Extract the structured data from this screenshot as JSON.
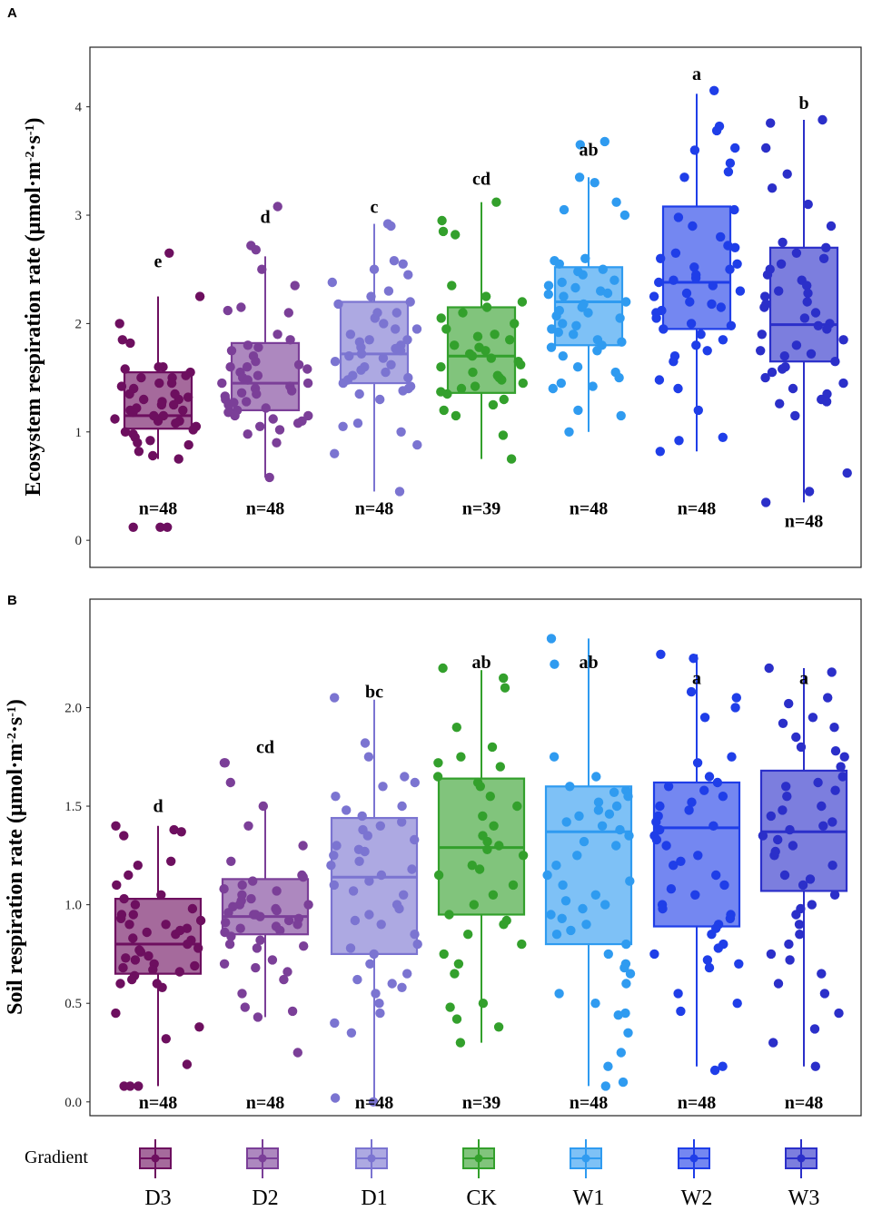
{
  "chart_data": [
    {
      "type": "box",
      "panel_label": "A",
      "ylabel_main": "Ecosystem respiration rate (μmol·m",
      "ylabel_sup1": "-2",
      "ylabel_mid": "·s",
      "ylabel_sup2": "-1",
      "ylabel_end": ")",
      "ylim": [
        -0.25,
        4.55
      ],
      "yticks": [
        "0",
        "1",
        "2",
        "3",
        "4"
      ],
      "groups": [
        {
          "name": "D3",
          "color": "#6d0f5f",
          "q1": 1.03,
          "median": 1.15,
          "q3": 1.55,
          "whisker_low": 0.75,
          "whisker_high": 2.25,
          "sig": "e",
          "sig_y": 2.52,
          "n": "n=48",
          "n_y": 0.3,
          "points": [
            2.65,
            2.25,
            2.0,
            1.85,
            1.82,
            1.6,
            1.58,
            1.55,
            1.52,
            1.5,
            1.45,
            1.42,
            1.4,
            1.35,
            1.32,
            1.3,
            1.28,
            1.25,
            1.22,
            1.2,
            1.18,
            1.15,
            1.12,
            1.1,
            1.08,
            1.05,
            1.02,
            1.0,
            0.98,
            0.95,
            0.92,
            0.88,
            0.82,
            0.78,
            0.75,
            0.12,
            0.12,
            0.12,
            1.5,
            1.35,
            1.2,
            1.1,
            1.3,
            1.6,
            1.45,
            0.9,
            1.15,
            1.25
          ]
        },
        {
          "name": "D2",
          "color": "#7b3f98",
          "q1": 1.2,
          "median": 1.45,
          "q3": 1.82,
          "whisker_low": 0.58,
          "whisker_high": 2.62,
          "sig": "d",
          "sig_y": 2.93,
          "n": "n=48",
          "n_y": 0.3,
          "points": [
            3.08,
            2.72,
            2.68,
            2.5,
            2.35,
            2.15,
            2.12,
            2.1,
            1.9,
            1.85,
            1.8,
            1.78,
            1.7,
            1.65,
            1.6,
            1.58,
            1.55,
            1.5,
            1.48,
            1.45,
            1.42,
            1.4,
            1.38,
            1.35,
            1.3,
            1.28,
            1.25,
            1.22,
            1.2,
            1.18,
            1.15,
            1.12,
            1.1,
            1.08,
            1.05,
            1.02,
            0.98,
            0.9,
            0.58,
            1.75,
            1.62,
            1.52,
            1.33,
            1.6,
            1.45,
            1.36,
            1.27,
            1.15
          ]
        },
        {
          "name": "D1",
          "color": "#7b74d1",
          "q1": 1.45,
          "median": 1.72,
          "q3": 2.2,
          "whisker_low": 0.45,
          "whisker_high": 2.92,
          "sig": "c",
          "sig_y": 3.02,
          "n": "n=48",
          "n_y": 0.3,
          "points": [
            2.92,
            2.9,
            2.58,
            2.55,
            2.5,
            2.45,
            2.38,
            2.3,
            2.25,
            2.2,
            2.18,
            2.1,
            2.05,
            2.0,
            1.95,
            1.9,
            1.85,
            1.8,
            1.78,
            1.75,
            1.72,
            1.7,
            1.68,
            1.65,
            1.6,
            1.55,
            1.52,
            1.5,
            1.45,
            1.42,
            1.4,
            1.35,
            1.3,
            1.08,
            1.05,
            1.0,
            0.88,
            0.8,
            0.45,
            2.1,
            1.95,
            1.83,
            1.77,
            1.62,
            1.57,
            1.48,
            1.38,
            1.85
          ]
        },
        {
          "name": "CK",
          "color": "#33a02c",
          "q1": 1.36,
          "median": 1.7,
          "q3": 2.15,
          "whisker_low": 0.75,
          "whisker_high": 3.12,
          "sig": "cd",
          "sig_y": 3.28,
          "n": "n=39",
          "n_y": 0.3,
          "points": [
            3.12,
            2.95,
            2.85,
            2.82,
            2.35,
            2.25,
            2.2,
            2.15,
            2.1,
            2.05,
            2.0,
            1.95,
            1.9,
            1.85,
            1.8,
            1.78,
            1.75,
            1.72,
            1.7,
            1.68,
            1.65,
            1.6,
            1.55,
            1.5,
            1.48,
            1.45,
            1.42,
            1.4,
            1.35,
            1.3,
            1.25,
            1.2,
            1.15,
            0.97,
            0.75,
            1.62,
            1.52,
            1.88,
            1.37
          ]
        },
        {
          "name": "W1",
          "color": "#2f9bf0",
          "q1": 1.8,
          "median": 2.2,
          "q3": 2.52,
          "whisker_low": 1.0,
          "whisker_high": 3.35,
          "sig": "ab",
          "sig_y": 3.55,
          "n": "n=48",
          "n_y": 0.3,
          "points": [
            3.68,
            3.65,
            3.35,
            3.3,
            3.12,
            3.05,
            3.0,
            2.6,
            2.58,
            2.55,
            2.5,
            2.45,
            2.4,
            2.35,
            2.3,
            2.28,
            2.25,
            2.2,
            2.18,
            2.15,
            2.1,
            2.05,
            2.0,
            1.98,
            1.95,
            1.9,
            1.85,
            1.8,
            1.78,
            1.75,
            1.6,
            1.55,
            1.5,
            1.45,
            1.42,
            1.4,
            1.2,
            1.15,
            1.0,
            2.48,
            2.38,
            2.12,
            1.92,
            1.83,
            2.27,
            2.07,
            1.7,
            2.33
          ]
        },
        {
          "name": "W2",
          "color": "#1f3ee8",
          "q1": 1.95,
          "median": 2.38,
          "q3": 3.08,
          "whisker_low": 0.82,
          "whisker_high": 4.12,
          "sig": "a",
          "sig_y": 4.25,
          "n": "n=48",
          "n_y": 0.3,
          "points": [
            4.15,
            3.82,
            3.78,
            3.62,
            3.6,
            3.48,
            3.4,
            3.35,
            3.05,
            2.98,
            2.9,
            2.8,
            2.7,
            2.65,
            2.6,
            2.55,
            2.5,
            2.45,
            2.42,
            2.4,
            2.38,
            2.35,
            2.3,
            2.25,
            2.2,
            2.18,
            2.15,
            2.1,
            2.05,
            2.0,
            1.95,
            1.9,
            1.8,
            1.75,
            1.7,
            1.65,
            1.48,
            1.4,
            1.2,
            0.95,
            0.92,
            0.82,
            2.72,
            2.52,
            2.28,
            2.12,
            1.98,
            1.85
          ]
        },
        {
          "name": "W3",
          "color": "#2b2fc9",
          "q1": 1.65,
          "median": 1.99,
          "q3": 2.7,
          "whisker_low": 0.35,
          "whisker_high": 3.88,
          "sig": "b",
          "sig_y": 3.98,
          "n": "n=48",
          "n_y": 0.18,
          "points": [
            3.88,
            3.85,
            3.62,
            3.38,
            3.25,
            3.1,
            2.9,
            2.75,
            2.7,
            2.65,
            2.55,
            2.5,
            2.45,
            2.4,
            2.35,
            2.3,
            2.28,
            2.25,
            2.2,
            2.15,
            2.1,
            2.05,
            2.0,
            1.98,
            1.95,
            1.9,
            1.85,
            1.8,
            1.75,
            1.7,
            1.65,
            1.6,
            1.55,
            1.5,
            1.45,
            1.4,
            1.35,
            1.3,
            1.28,
            1.26,
            1.15,
            0.62,
            0.45,
            0.35,
            2.6,
            2.18,
            1.72,
            1.58
          ]
        }
      ]
    },
    {
      "type": "box",
      "panel_label": "B",
      "ylabel_main": "Soil respiration rate (μmol·m",
      "ylabel_sup1": "-2",
      "ylabel_mid": "·s",
      "ylabel_sup2": "-1",
      "ylabel_end": ")",
      "ylim": [
        -0.07,
        2.55
      ],
      "yticks": [
        "0.0",
        "0.5",
        "1.0",
        "1.5",
        "2.0"
      ],
      "groups": [
        {
          "name": "D3",
          "color": "#6d0f5f",
          "q1": 0.65,
          "median": 0.8,
          "q3": 1.03,
          "whisker_low": 0.08,
          "whisker_high": 1.4,
          "sig": "d",
          "sig_y": 1.47,
          "n": "n=48",
          "n_y": 0.0,
          "points": [
            1.4,
            1.38,
            1.37,
            1.35,
            1.22,
            1.2,
            1.15,
            1.1,
            1.05,
            1.03,
            1.0,
            0.98,
            0.95,
            0.92,
            0.9,
            0.88,
            0.85,
            0.82,
            0.8,
            0.78,
            0.76,
            0.74,
            0.72,
            0.7,
            0.68,
            0.66,
            0.64,
            0.62,
            0.6,
            0.58,
            0.45,
            0.38,
            0.32,
            0.19,
            0.08,
            0.08,
            0.08,
            0.95,
            0.87,
            0.83,
            0.77,
            0.73,
            0.69,
            0.93,
            0.9,
            0.86,
            0.67,
            0.6
          ]
        },
        {
          "name": "D2",
          "color": "#7b3f98",
          "q1": 0.85,
          "median": 0.94,
          "q3": 1.13,
          "whisker_low": 0.43,
          "whisker_high": 1.52,
          "sig": "cd",
          "sig_y": 1.77,
          "n": "n=48",
          "n_y": 0.0,
          "points": [
            1.72,
            1.72,
            1.62,
            1.5,
            1.4,
            1.3,
            1.22,
            1.15,
            1.12,
            1.1,
            1.08,
            1.05,
            1.02,
            1.0,
            0.98,
            0.96,
            0.95,
            0.94,
            0.93,
            0.92,
            0.9,
            0.88,
            0.86,
            0.84,
            0.82,
            0.8,
            0.78,
            0.72,
            0.7,
            0.68,
            0.66,
            0.62,
            0.55,
            0.48,
            0.46,
            0.43,
            0.25,
            1.07,
            1.0,
            0.97,
            0.95,
            0.91,
            0.89,
            0.87,
            1.14,
            1.03,
            0.99,
            0.79
          ]
        },
        {
          "name": "D1",
          "color": "#7b74d1",
          "q1": 0.75,
          "median": 1.14,
          "q3": 1.44,
          "whisker_low": 0.0,
          "whisker_high": 2.04,
          "sig": "bc",
          "sig_y": 2.05,
          "n": "n=48",
          "n_y": 0.0,
          "points": [
            2.05,
            1.82,
            1.75,
            1.65,
            1.62,
            1.6,
            1.55,
            1.5,
            1.48,
            1.45,
            1.42,
            1.4,
            1.38,
            1.35,
            1.3,
            1.28,
            1.25,
            1.2,
            1.18,
            1.15,
            1.12,
            1.1,
            1.05,
            1.0,
            0.98,
            0.95,
            0.9,
            0.85,
            0.8,
            0.78,
            0.75,
            0.7,
            0.65,
            0.6,
            0.55,
            0.5,
            0.45,
            0.4,
            0.35,
            0.02,
            0.0,
            1.33,
            1.22,
            1.07,
            0.92,
            0.62,
            0.58,
            1.27
          ]
        },
        {
          "name": "CK",
          "color": "#33a02c",
          "q1": 0.95,
          "median": 1.29,
          "q3": 1.64,
          "whisker_low": 0.3,
          "whisker_high": 2.19,
          "sig": "ab",
          "sig_y": 2.2,
          "n": "n=39",
          "n_y": 0.0,
          "points": [
            2.2,
            2.15,
            2.1,
            1.9,
            1.8,
            1.75,
            1.72,
            1.7,
            1.65,
            1.6,
            1.55,
            1.5,
            1.45,
            1.4,
            1.35,
            1.32,
            1.3,
            1.28,
            1.25,
            1.2,
            1.15,
            1.1,
            1.05,
            1.0,
            0.95,
            0.92,
            0.9,
            0.85,
            0.8,
            0.75,
            0.7,
            0.65,
            0.5,
            0.48,
            0.42,
            0.38,
            0.3,
            1.62,
            1.18
          ]
        },
        {
          "name": "W1",
          "color": "#2f9bf0",
          "q1": 0.8,
          "median": 1.37,
          "q3": 1.6,
          "whisker_low": 0.08,
          "whisker_high": 2.35,
          "sig": "ab",
          "sig_y": 2.2,
          "n": "n=48",
          "n_y": 0.0,
          "points": [
            2.35,
            2.22,
            1.75,
            1.65,
            1.6,
            1.58,
            1.55,
            1.52,
            1.5,
            1.48,
            1.45,
            1.42,
            1.4,
            1.38,
            1.35,
            1.3,
            1.25,
            1.2,
            1.15,
            1.1,
            1.05,
            1.0,
            0.98,
            0.95,
            0.9,
            0.85,
            0.8,
            0.75,
            0.7,
            0.68,
            0.65,
            0.6,
            0.55,
            0.5,
            0.45,
            0.44,
            0.35,
            0.25,
            0.18,
            0.1,
            0.08,
            1.57,
            1.46,
            1.32,
            1.12,
            1.02,
            0.93,
            0.87
          ]
        },
        {
          "name": "W2",
          "color": "#1f3ee8",
          "q1": 0.89,
          "median": 1.39,
          "q3": 1.62,
          "whisker_low": 0.18,
          "whisker_high": 2.27,
          "sig": "a",
          "sig_y": 2.12,
          "n": "n=48",
          "n_y": 0.0,
          "points": [
            2.27,
            2.25,
            2.08,
            2.05,
            2.0,
            1.95,
            1.75,
            1.72,
            1.65,
            1.62,
            1.6,
            1.58,
            1.55,
            1.5,
            1.48,
            1.45,
            1.42,
            1.4,
            1.38,
            1.35,
            1.3,
            1.25,
            1.2,
            1.15,
            1.1,
            1.05,
            1.0,
            0.98,
            0.95,
            0.9,
            0.88,
            0.85,
            0.8,
            0.75,
            0.72,
            0.7,
            0.68,
            0.55,
            0.5,
            0.46,
            0.18,
            0.16,
            1.52,
            1.33,
            1.22,
            1.08,
            0.93,
            0.78
          ]
        },
        {
          "name": "W3",
          "color": "#2b2fc9",
          "q1": 1.07,
          "median": 1.37,
          "q3": 1.68,
          "whisker_low": 0.18,
          "whisker_high": 2.2,
          "sig": "a",
          "sig_y": 2.12,
          "n": "n=48",
          "n_y": 0.0,
          "points": [
            2.2,
            2.18,
            2.05,
            2.02,
            1.95,
            1.92,
            1.9,
            1.85,
            1.8,
            1.78,
            1.75,
            1.7,
            1.65,
            1.6,
            1.58,
            1.55,
            1.5,
            1.48,
            1.45,
            1.42,
            1.4,
            1.38,
            1.35,
            1.3,
            1.25,
            1.2,
            1.15,
            1.1,
            1.05,
            1.0,
            0.98,
            0.95,
            0.9,
            0.85,
            0.8,
            0.75,
            0.72,
            0.65,
            0.6,
            0.55,
            0.45,
            0.37,
            0.3,
            0.18,
            1.62,
            1.27,
            1.13,
            1.33
          ]
        }
      ]
    }
  ],
  "legend": {
    "title": "Gradient",
    "items": [
      {
        "label": "D3",
        "color": "#6d0f5f"
      },
      {
        "label": "D2",
        "color": "#7b3f98"
      },
      {
        "label": "D1",
        "color": "#7b74d1"
      },
      {
        "label": "CK",
        "color": "#33a02c"
      },
      {
        "label": "W1",
        "color": "#2f9bf0"
      },
      {
        "label": "W2",
        "color": "#1f3ee8"
      },
      {
        "label": "W3",
        "color": "#2b2fc9"
      }
    ]
  }
}
